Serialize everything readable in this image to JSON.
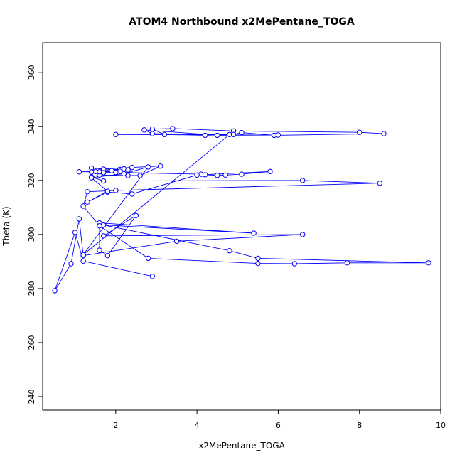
{
  "chart_data": {
    "type": "line",
    "title": "ATOM4 Northbound x2MePentane_TOGA",
    "xlabel": "x2MePentane_TOGA",
    "ylabel": "Theta (K)",
    "xlim": [
      0.2,
      10.0
    ],
    "ylim": [
      235,
      371
    ],
    "xticks": [
      2,
      4,
      6,
      8,
      10
    ],
    "yticks": [
      240,
      260,
      280,
      300,
      320,
      340,
      360
    ],
    "grid": false,
    "marker": "open-circle",
    "series": [
      {
        "color": "#0000ff",
        "points": [
          [
            2.9,
            284.5
          ],
          [
            1.2,
            290.2
          ],
          [
            1.0,
            300.8
          ],
          [
            0.5,
            279.2
          ],
          [
            0.9,
            289.2
          ],
          [
            1.1,
            305.8
          ],
          [
            1.2,
            292.2
          ],
          [
            3.5,
            297.5
          ],
          [
            6.6,
            300.0
          ],
          [
            1.7,
            299.5
          ],
          [
            2.5,
            307.0
          ],
          [
            1.8,
            292.2
          ],
          [
            1.6,
            294.2
          ],
          [
            1.6,
            304.3
          ],
          [
            5.4,
            300.5
          ],
          [
            1.7,
            303.5
          ],
          [
            4.8,
            294.0
          ],
          [
            5.5,
            291.2
          ],
          [
            9.7,
            289.5
          ],
          [
            7.7,
            289.5
          ],
          [
            6.4,
            289.2
          ],
          [
            5.5,
            289.3
          ],
          [
            2.8,
            291.2
          ],
          [
            1.6,
            303.2
          ],
          [
            1.2,
            310.5
          ],
          [
            1.3,
            315.8
          ],
          [
            2.0,
            316.3
          ],
          [
            8.5,
            319.0
          ],
          [
            6.6,
            320.0
          ],
          [
            1.7,
            319.8
          ],
          [
            1.4,
            321.3
          ],
          [
            1.6,
            322.0
          ],
          [
            2.3,
            321.8
          ],
          [
            2.6,
            321.8
          ],
          [
            3.1,
            325.3
          ],
          [
            2.4,
            324.8
          ],
          [
            2.2,
            324.3
          ],
          [
            2.0,
            323.2
          ],
          [
            1.1,
            323.2
          ],
          [
            1.5,
            323.3
          ],
          [
            2.1,
            324.1
          ],
          [
            1.4,
            324.6
          ],
          [
            1.7,
            324.2
          ],
          [
            2.3,
            323.9
          ],
          [
            1.9,
            323.6
          ],
          [
            2.1,
            323.4
          ],
          [
            1.6,
            323.2
          ],
          [
            1.4,
            323.1
          ],
          [
            1.7,
            322.9
          ],
          [
            2.0,
            323.0
          ],
          [
            4.1,
            322.3
          ],
          [
            4.2,
            322.1
          ],
          [
            4.5,
            321.9
          ],
          [
            4.7,
            322.0
          ],
          [
            5.1,
            322.3
          ],
          [
            5.8,
            323.3
          ],
          [
            4.0,
            322.0
          ],
          [
            2.4,
            315.0
          ],
          [
            1.8,
            315.7
          ],
          [
            1.3,
            312.0
          ],
          [
            1.8,
            316.0
          ],
          [
            1.4,
            321.0
          ],
          [
            2.2,
            322.5
          ],
          [
            2.8,
            325.0
          ],
          [
            1.2,
            292.5
          ],
          [
            4.8,
            337.0
          ],
          [
            4.2,
            336.7
          ],
          [
            3.2,
            337.0
          ],
          [
            2.9,
            339.0
          ],
          [
            3.4,
            339.2
          ],
          [
            4.9,
            338.3
          ],
          [
            8.0,
            337.8
          ],
          [
            8.6,
            337.3
          ],
          [
            5.9,
            336.7
          ],
          [
            5.1,
            337.7
          ],
          [
            4.9,
            337.0
          ],
          [
            2.9,
            337.3
          ],
          [
            2.7,
            338.7
          ],
          [
            4.5,
            336.7
          ],
          [
            6.0,
            336.8
          ],
          [
            2.0,
            337.0
          ]
        ]
      }
    ]
  }
}
